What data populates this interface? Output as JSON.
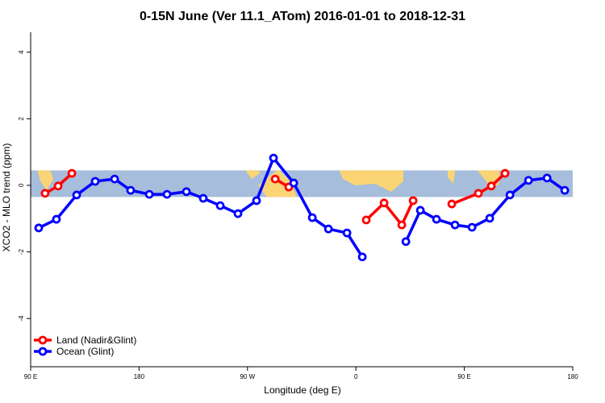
{
  "chart_data": {
    "type": "line",
    "title": "0-15N June (Ver 11.1_ATom)   2016-01-01 to 2018-12-31",
    "xlabel": "Longitude (deg E)",
    "ylabel": "XCO2 - MLO trend (ppm)",
    "xlim": [
      90,
      540
    ],
    "ylim": [
      -5.45,
      4.6
    ],
    "xticks": [
      {
        "value": 90,
        "label": "90 E"
      },
      180,
      {
        "value": 270,
        "label": "90 W"
      },
      {
        "value": 360,
        "label": "0"
      },
      {
        "value": 450,
        "label": "90 E"
      },
      {
        "value": 540,
        "label": "180"
      }
    ],
    "yticks": [
      -4,
      -2,
      0,
      2,
      4
    ],
    "band": [
      -0.35,
      0.45
    ],
    "band_color": "#a6bddb",
    "legend": "bottom-left",
    "series": [
      {
        "name": "Land (Nadir&Glint)",
        "color": "#ff0000",
        "x": [
          102,
          112.8,
          124.2,
          null,
          293,
          304.3,
          null,
          368.6,
          383.4,
          398.1,
          407.5,
          null,
          439.6,
          461.7,
          472.4,
          483.8
        ],
        "values": [
          -0.24,
          -0.02,
          0.36,
          null,
          0.19,
          -0.05,
          null,
          -1.04,
          -0.53,
          -1.19,
          -0.46,
          null,
          -0.56,
          -0.24,
          -0.02,
          0.36
        ]
      },
      {
        "name": "Ocean (Glint)",
        "color": "#0000ff",
        "x": [
          96.7,
          111.4,
          128.2,
          143.6,
          159.7,
          173,
          188.5,
          203.2,
          219.3,
          233.3,
          247.4,
          262.1,
          277.5,
          291.6,
          308.4,
          323.8,
          337.2,
          352.6,
          365.3,
          null,
          401.5,
          413.5,
          426.9,
          442.3,
          456.4,
          471.1,
          487.9,
          503.3,
          518.7,
          533.4
        ],
        "values": [
          -1.28,
          -1.02,
          -0.29,
          0.12,
          0.19,
          -0.15,
          -0.27,
          -0.27,
          -0.19,
          -0.39,
          -0.61,
          -0.85,
          -0.46,
          0.82,
          0.07,
          -0.97,
          -1.31,
          -1.43,
          -2.15,
          null,
          -1.69,
          -0.75,
          -1.02,
          -1.19,
          -1.26,
          -0.99,
          -0.29,
          0.15,
          0.22,
          -0.15
        ]
      }
    ]
  }
}
